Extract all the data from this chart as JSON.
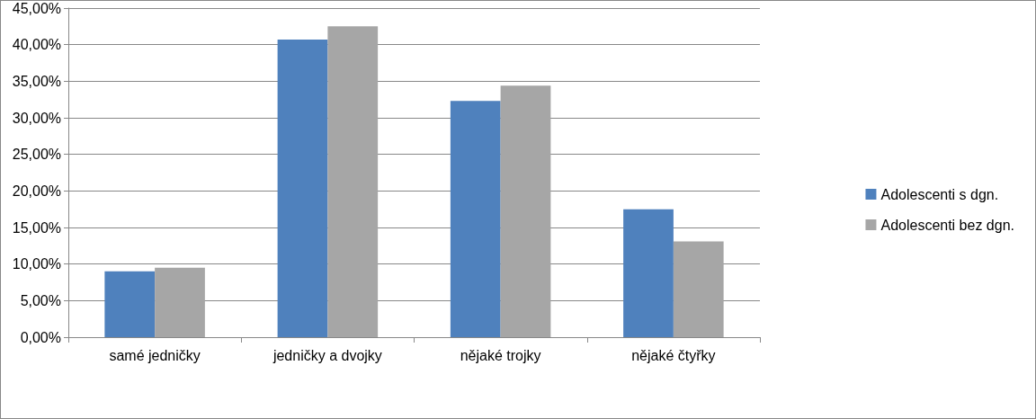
{
  "chart_data": {
    "type": "bar",
    "categories": [
      "samé jedničky",
      "jedničky a dvojky",
      "nějaké trojky",
      "nějaké čtyřky"
    ],
    "series": [
      {
        "name": "Adolescenti s dgn.",
        "color": "#4f81bd",
        "values": [
          9.0,
          40.7,
          32.3,
          17.5
        ]
      },
      {
        "name": "Adolescenti bez dgn.",
        "color": "#a6a6a6",
        "values": [
          9.5,
          42.5,
          34.4,
          13.1
        ]
      }
    ],
    "ylim": [
      0,
      45
    ],
    "yticks": [
      {
        "value": 0,
        "label": "0,00%"
      },
      {
        "value": 5,
        "label": "5,00%"
      },
      {
        "value": 10,
        "label": "10,00%"
      },
      {
        "value": 15,
        "label": "15,00%"
      },
      {
        "value": 20,
        "label": "20,00%"
      },
      {
        "value": 25,
        "label": "25,00%"
      },
      {
        "value": 30,
        "label": "30,00%"
      },
      {
        "value": 35,
        "label": "35,00%"
      },
      {
        "value": 40,
        "label": "40,00%"
      },
      {
        "value": 45,
        "label": "45,00%"
      }
    ],
    "grid": "y",
    "legend": "right"
  }
}
